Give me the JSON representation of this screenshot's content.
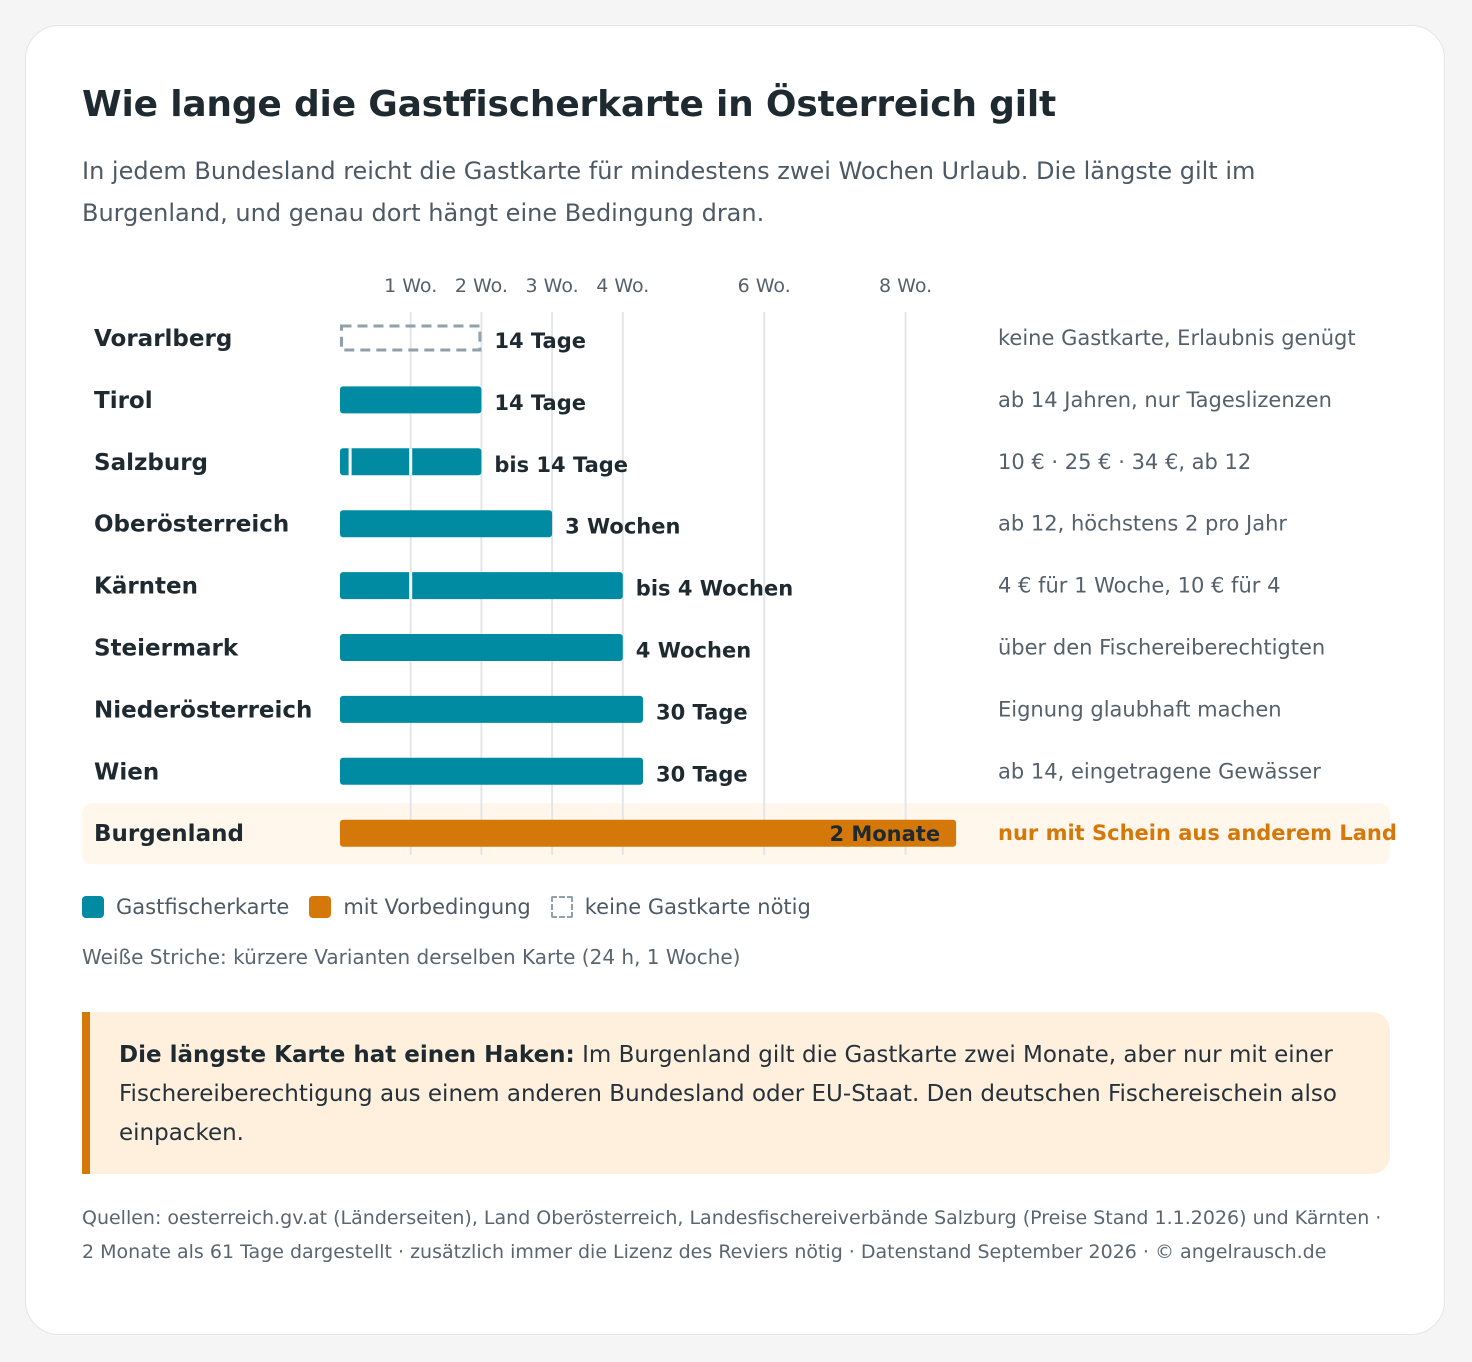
{
  "title": "Wie lange die Gastfischerkarte in Österreich gilt",
  "subtitle": "In jedem Bundesland reicht die Gastkarte für mindestens zwei Wochen Urlaub. Die längste gilt im Burgenland, und genau dort hängt eine Bedingung dran.",
  "colors": {
    "gastkarte": "#008ba3",
    "vorbedingung": "#d4780a",
    "none": "#90a1a9",
    "highlight_bg": "#fff6ec"
  },
  "chart_data": {
    "type": "bar",
    "orientation": "horizontal",
    "unit": "days",
    "x_ticks": [
      {
        "value": 7,
        "label": "1 Wo."
      },
      {
        "value": 14,
        "label": "2 Wo."
      },
      {
        "value": 21,
        "label": "3 Wo."
      },
      {
        "value": 28,
        "label": "4 Wo."
      },
      {
        "value": 42,
        "label": "6 Wo."
      },
      {
        "value": 56,
        "label": "8 Wo."
      }
    ],
    "xlim": [
      0,
      70
    ],
    "grid": true,
    "rows": [
      {
        "region": "Vorarlberg",
        "days": 14,
        "label": "14 Tage",
        "kind": "none",
        "variants": [],
        "note": "keine Gastkarte, Erlaubnis genügt"
      },
      {
        "region": "Tirol",
        "days": 14,
        "label": "14 Tage",
        "kind": "gastkarte",
        "variants": [],
        "note": "ab 14 Jahren, nur Tageslizenzen"
      },
      {
        "region": "Salzburg",
        "days": 14,
        "label": "bis 14 Tage",
        "kind": "gastkarte",
        "variants": [
          1,
          7
        ],
        "note": "10 € · 25 € · 34 €, ab 12"
      },
      {
        "region": "Oberösterreich",
        "days": 21,
        "label": "3 Wochen",
        "kind": "gastkarte",
        "variants": [],
        "note": "ab 12, höchstens 2 pro Jahr"
      },
      {
        "region": "Kärnten",
        "days": 28,
        "label": "bis 4 Wochen",
        "kind": "gastkarte",
        "variants": [
          7
        ],
        "note": "4 € für 1 Woche, 10 € für 4"
      },
      {
        "region": "Steiermark",
        "days": 28,
        "label": "4 Wochen",
        "kind": "gastkarte",
        "variants": [],
        "note": "über den Fischereiberechtigten"
      },
      {
        "region": "Niederösterreich",
        "days": 30,
        "label": "30 Tage",
        "kind": "gastkarte",
        "variants": [],
        "note": "Eignung glaubhaft machen"
      },
      {
        "region": "Wien",
        "days": 30,
        "label": "30 Tage",
        "kind": "gastkarte",
        "variants": [],
        "note": "ab 14, eingetragene Gewässer"
      },
      {
        "region": "Burgenland",
        "days": 61,
        "label": "2 Monate",
        "kind": "vorbedingung",
        "variants": [],
        "note": "nur mit Schein aus anderem Land",
        "highlight": true
      }
    ]
  },
  "legend": {
    "gastkarte": "Gastfischerkarte",
    "vorbedingung": "mit Vorbedingung",
    "none": "keine Gastkarte nötig"
  },
  "note": "Weiße Striche: kürzere Varianten derselben Karte (24 h, 1 Woche)",
  "callout": {
    "lead": "Die längste Karte hat einen Haken:",
    "text": " Im Burgenland gilt die Gastkarte zwei Monate, aber nur mit einer Fischereiberechtigung aus einem anderen Bundesland oder EU-Staat. Den deutschen Fischereischein also einpacken."
  },
  "sources": "Quellen: oesterreich.gv.at (Länderseiten), Land Oberösterreich, Landesfischereiverbände Salzburg (Preise Stand 1.1.2026) und Kärnten · 2 Monate als 61 Tage dargestellt · zusätzlich immer die Lizenz des Reviers nötig · Datenstand September 2026 · © angelrausch.de"
}
